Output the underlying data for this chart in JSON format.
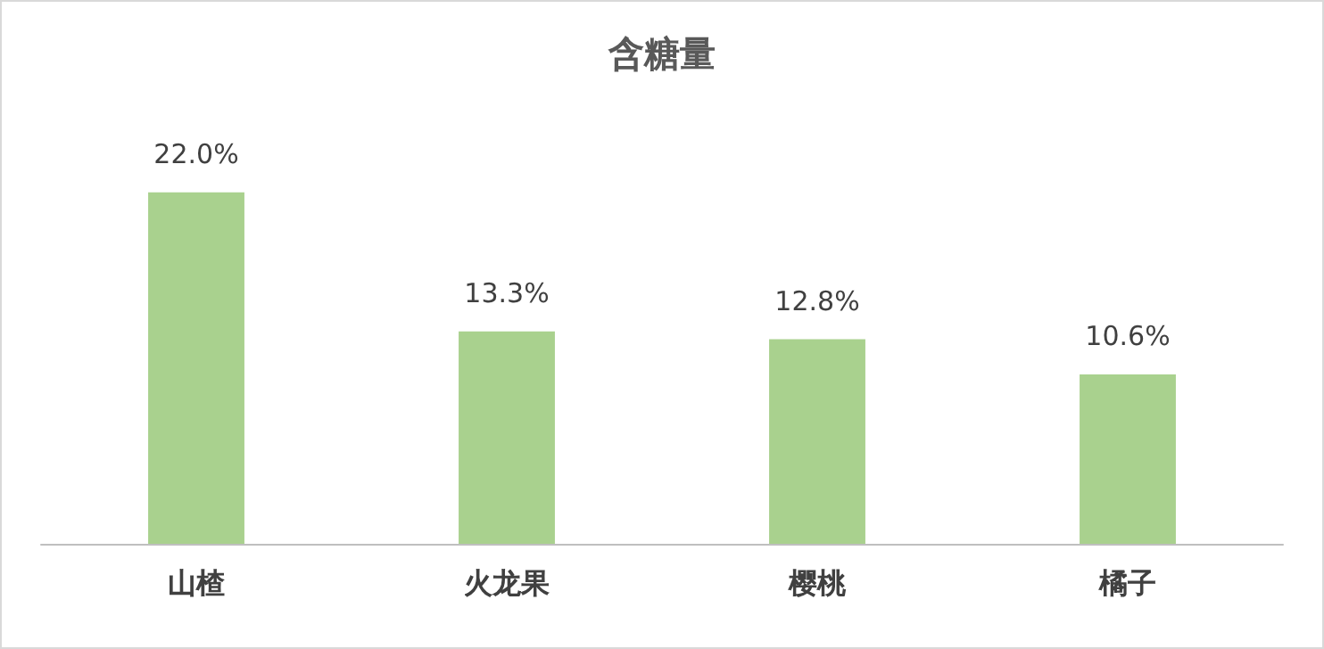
{
  "chart_data": {
    "type": "bar",
    "title": "含糖量",
    "categories": [
      "山楂",
      "火龙果",
      "樱桃",
      "橘子"
    ],
    "values": [
      22.0,
      13.3,
      12.8,
      10.6
    ],
    "color": "#a9d18e",
    "value_labels": [
      "22.0%",
      "13.3%",
      "12.8%",
      "10.6%"
    ]
  }
}
